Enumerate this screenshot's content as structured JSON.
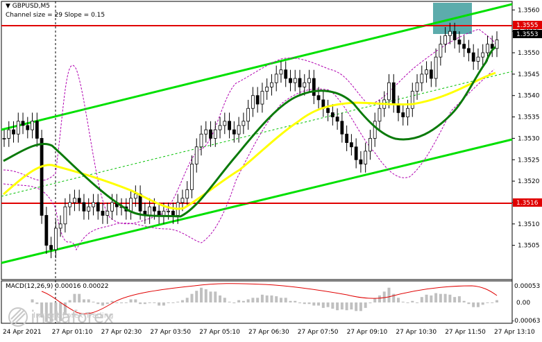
{
  "header": {
    "symbol_label": "GBPUSD,M5",
    "channel_text": "Channel size = 29 Slope = 0.15"
  },
  "macd": {
    "label": "MACD(12,26,9) 0.00016 0.00022",
    "scale_labels": [
      "0.00053",
      "0.00",
      "-0.00063"
    ],
    "scale_values": [
      0.00053,
      0.0,
      -0.00063
    ]
  },
  "price_markers": {
    "upper_level": "1.3555",
    "upper_level_value": 1.3555,
    "current_price": "1.3553",
    "current_price_value": 1.3553,
    "support_level": "1.3516",
    "support_level_value": 1.3516
  },
  "brand": {
    "name": "instaforex",
    "tagline": "Instant Forex Trading"
  },
  "colors": {
    "up_channel": "#00e000",
    "ma_fast": "#0a7a0a",
    "ma_slow": "#ffff00",
    "level_line": "#e00000",
    "envelope": "#b000b0",
    "highlight_box": "#4aa3a3",
    "macd_hist": "#c0c0c0",
    "macd_signal": "#e00000"
  },
  "chart_data": {
    "type": "candlestick",
    "title": "GBPUSD,M5",
    "ylim": [
      1.3497,
      1.3562
    ],
    "y_ticks": [
      1.3505,
      1.351,
      1.3515,
      1.352,
      1.3525,
      1.353,
      1.3535,
      1.354,
      1.3545,
      1.355,
      1.3555,
      1.356
    ],
    "y_tick_labels": [
      "1.3505",
      "1.3510",
      "1.3515",
      "1.3520",
      "1.3525",
      "1.3530",
      "1.3535",
      "1.3540",
      "1.3545",
      "1.3550",
      "1.3555",
      "1.3560"
    ],
    "x_tick_labels": [
      "24 Apr 2021",
      "27 Apr 01:10",
      "27 Apr 02:30",
      "27 Apr 03:50",
      "27 Apr 05:10",
      "27 Apr 06:30",
      "27 Apr 07:50",
      "27 Apr 09:10",
      "27 Apr 10:30",
      "27 Apr 11:50",
      "27 Apr 13:10"
    ],
    "candles_close": [
      1.353,
      1.3532,
      1.3531,
      1.3534,
      1.3533,
      1.3532,
      1.3534,
      1.353,
      1.3512,
      1.3505,
      1.3504,
      1.3509,
      1.351,
      1.3514,
      1.3515,
      1.3516,
      1.3515,
      1.3513,
      1.3514,
      1.3515,
      1.3513,
      1.3512,
      1.3513,
      1.3515,
      1.3514,
      1.3514,
      1.3513,
      1.3516,
      1.3517,
      1.3513,
      1.3512,
      1.3514,
      1.3513,
      1.3512,
      1.3513,
      1.3513,
      1.3512,
      1.3515,
      1.3516,
      1.3518,
      1.3524,
      1.3528,
      1.3531,
      1.3532,
      1.353,
      1.3532,
      1.3533,
      1.3534,
      1.3532,
      1.3531,
      1.3533,
      1.3534,
      1.3537,
      1.354,
      1.3538,
      1.3541,
      1.3542,
      1.3543,
      1.3545,
      1.3546,
      1.3544,
      1.3543,
      1.3544,
      1.3542,
      1.3543,
      1.3544,
      1.354,
      1.3539,
      1.3537,
      1.3536,
      1.3535,
      1.3534,
      1.3531,
      1.3529,
      1.3528,
      1.3525,
      1.3524,
      1.3527,
      1.353,
      1.3534,
      1.3537,
      1.3539,
      1.3543,
      1.3538,
      1.3536,
      1.3535,
      1.3537,
      1.3541,
      1.3543,
      1.3545,
      1.3546,
      1.3544,
      1.3549,
      1.3552,
      1.3554,
      1.3555,
      1.3553,
      1.3552,
      1.3551,
      1.355,
      1.3548,
      1.3549,
      1.355,
      1.3552,
      1.3551,
      1.3553
    ],
    "support_line_value": 1.3516,
    "resistance_line_value": 1.3555
  }
}
